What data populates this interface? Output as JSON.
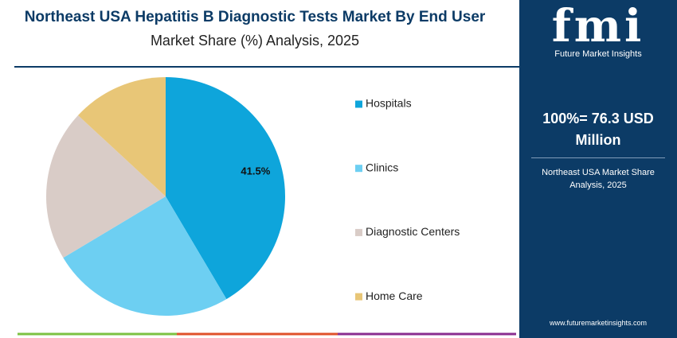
{
  "chart_data": {
    "type": "pie",
    "title": "Northeast USA Hepatitis B Diagnostic Tests Market By End User",
    "subtitle": "Market Share (%) Analysis, 2025",
    "categories": [
      "Hospitals",
      "Clinics",
      "Diagnostic Centers",
      "Home Care"
    ],
    "values": [
      41.5,
      24.9,
      20.5,
      13.1
    ],
    "value_labels": [
      "41.5%",
      null,
      null,
      null
    ],
    "colors": [
      "#0ea5db",
      "#6dcff2",
      "#d9ccc7",
      "#e8c677"
    ]
  },
  "sidebar": {
    "logo": "fmi",
    "brand": "Future Market Insights",
    "total": "100%= 76.3 USD Million",
    "caption": "Northeast USA Market Share Analysis, 2025",
    "url": "www.futuremarketinsights.com"
  }
}
